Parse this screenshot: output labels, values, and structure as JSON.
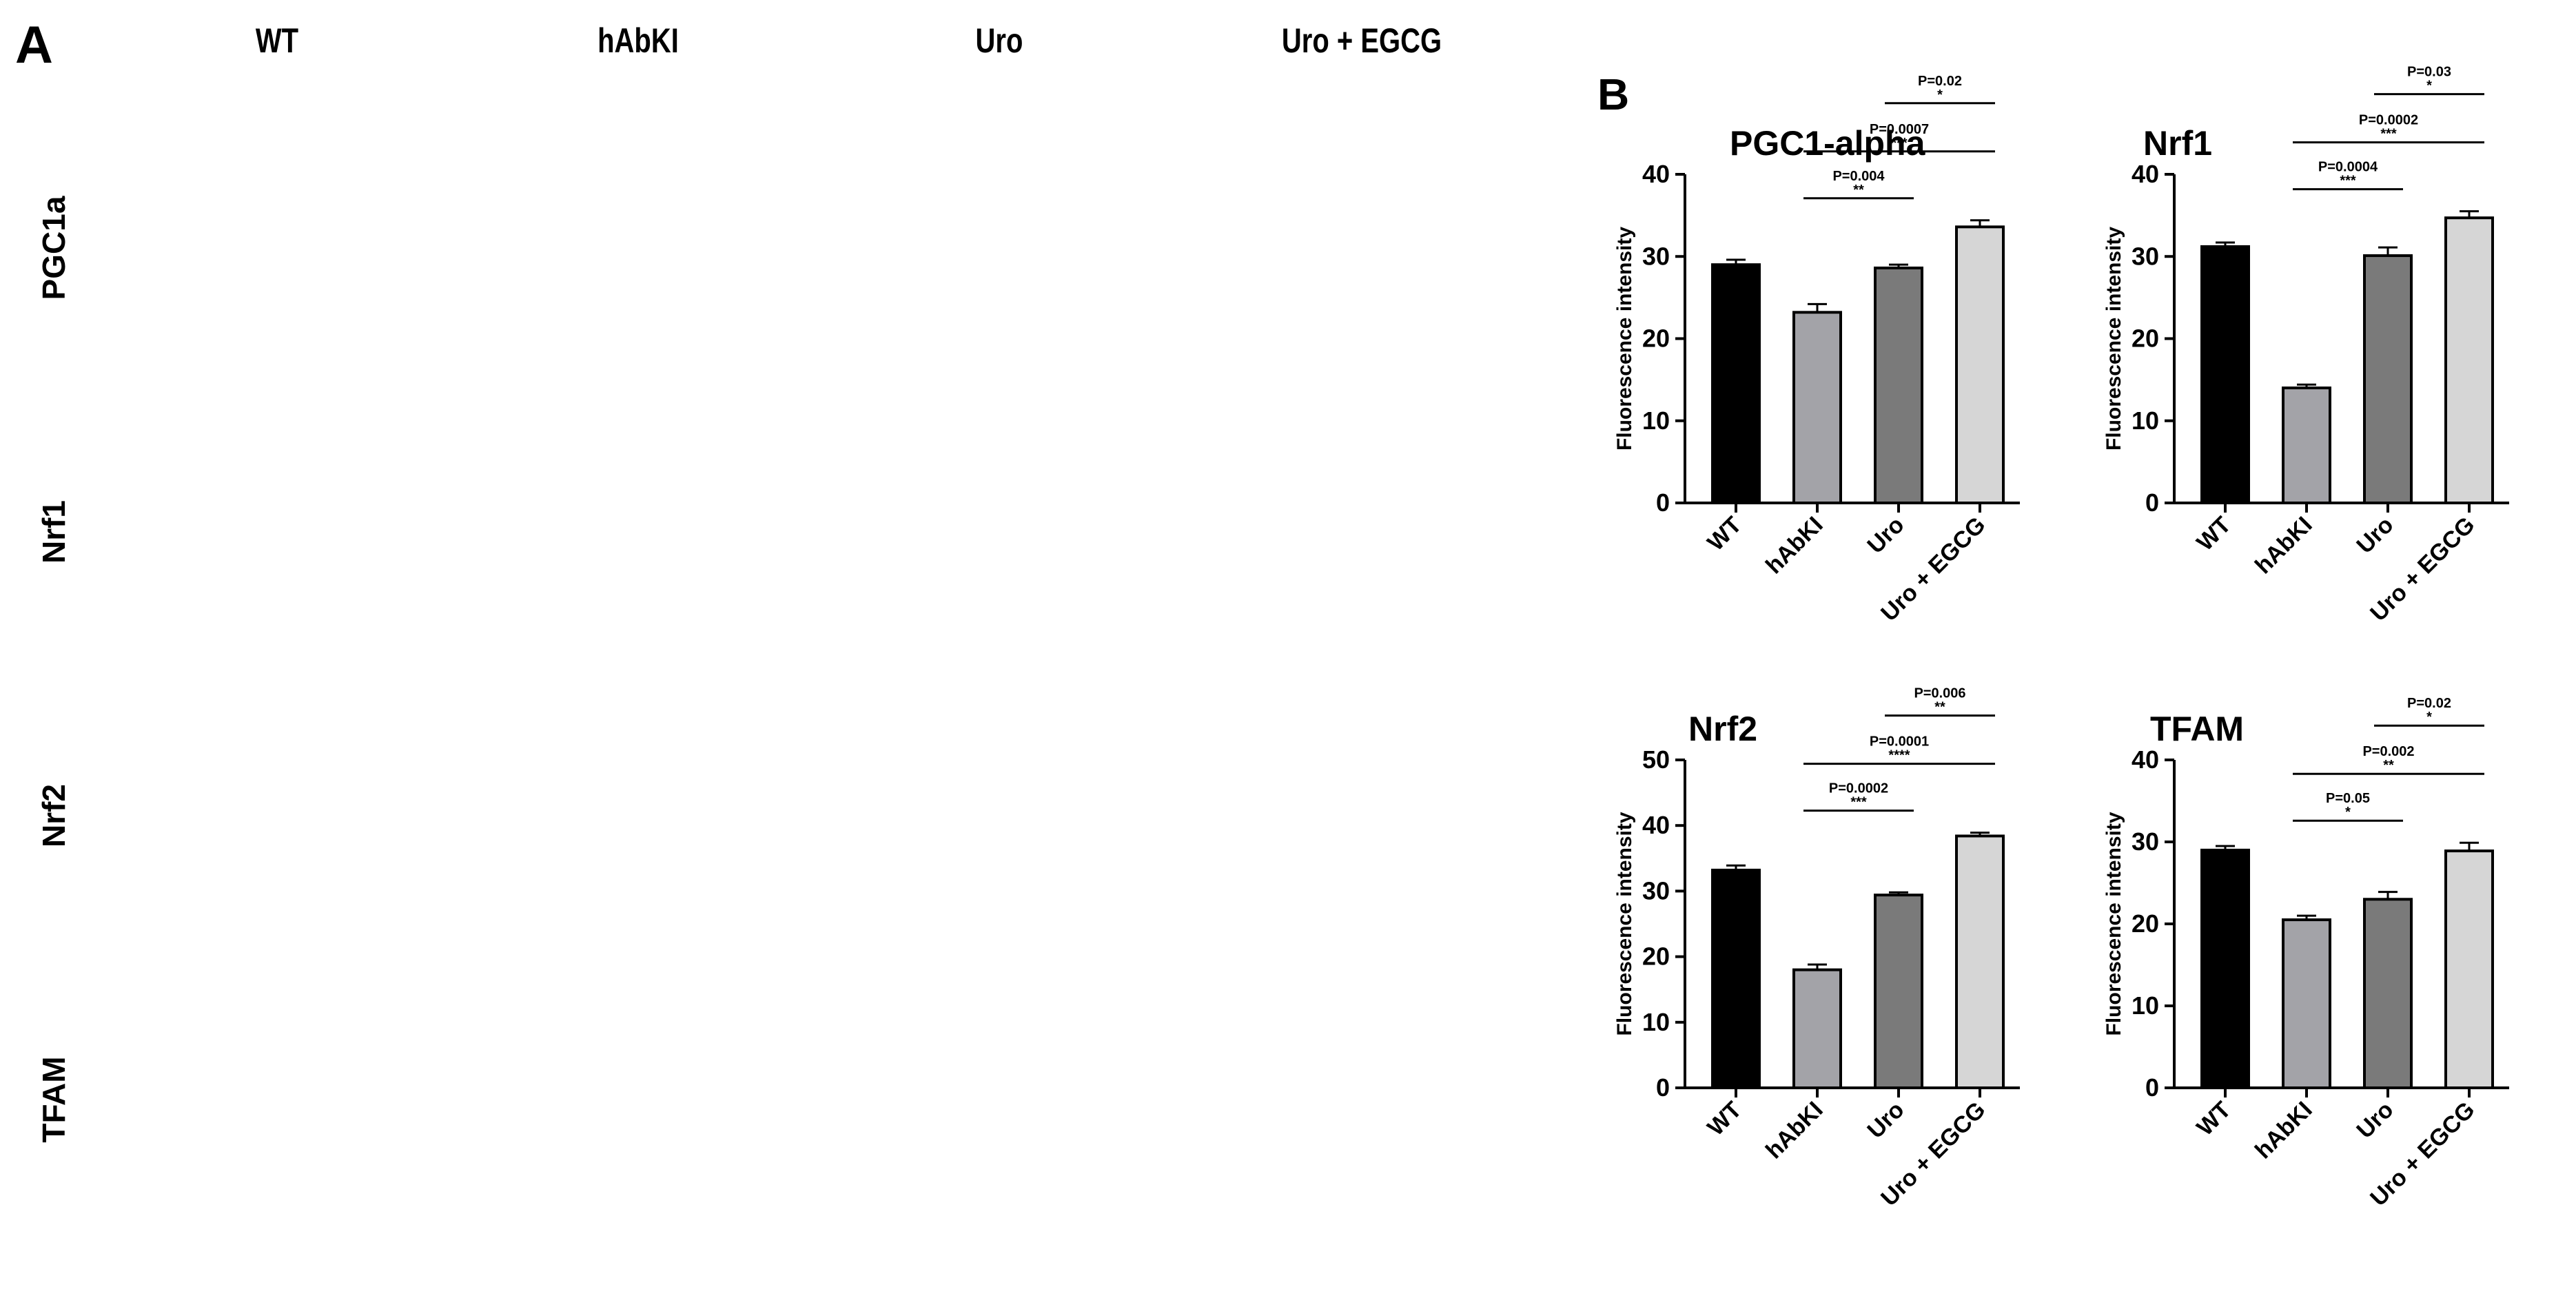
{
  "panel_a": {
    "letter": "A",
    "columns": [
      "WT",
      "hAbKI",
      "Uro",
      "Uro + EGCG"
    ],
    "rows": [
      "PGC1a",
      "Nrf1",
      "Nrf2",
      "TFAM"
    ]
  },
  "panel_b": {
    "letter": "B"
  },
  "colors": {
    "tissue_green": "#2f8f2a",
    "tissue_dark": "#0e3a1c",
    "nuclei_blue": "#2e55d6",
    "bar_colors": [
      "#000000",
      "#a3a3a8",
      "#7a7a7a",
      "#d6d6d6"
    ]
  },
  "chart_data": [
    {
      "type": "bar",
      "title": "PGC1-alpha",
      "ylabel": "Fluorescence intensity",
      "categories": [
        "WT",
        "hAbKI",
        "Uro",
        "Uro + EGCG"
      ],
      "values": [
        29,
        23.2,
        28.6,
        33.6
      ],
      "errors": [
        0.6,
        1.0,
        0.4,
        0.8
      ],
      "ylim": [
        0,
        40
      ],
      "yticks": [
        0,
        10,
        20,
        30,
        40
      ],
      "annotations": [
        {
          "from": 1,
          "to": 2,
          "p": "P=0.004",
          "stars": "**"
        },
        {
          "from": 1,
          "to": 3,
          "p": "P=0.0007",
          "stars": "***"
        },
        {
          "from": 2,
          "to": 3,
          "p": "P=0.02",
          "stars": "*"
        }
      ]
    },
    {
      "type": "bar",
      "title": "Nrf1",
      "ylabel": "Fluorescence intensity",
      "categories": [
        "WT",
        "hAbKI",
        "Uro",
        "Uro + EGCG"
      ],
      "values": [
        31.2,
        14,
        30.1,
        34.7
      ],
      "errors": [
        0.5,
        0.4,
        1.0,
        0.8
      ],
      "ylim": [
        0,
        40
      ],
      "yticks": [
        0,
        10,
        20,
        30,
        40
      ],
      "annotations": [
        {
          "from": 1,
          "to": 2,
          "p": "P=0.0004",
          "stars": "***"
        },
        {
          "from": 1,
          "to": 3,
          "p": "P=0.0002",
          "stars": "***"
        },
        {
          "from": 2,
          "to": 3,
          "p": "P=0.03",
          "stars": "*"
        }
      ]
    },
    {
      "type": "bar",
      "title": "Nrf2",
      "ylabel": "Fluorescence intensity",
      "categories": [
        "WT",
        "hAbKI",
        "Uro",
        "Uro + EGCG"
      ],
      "values": [
        33.2,
        18,
        29.4,
        38.4
      ],
      "errors": [
        0.7,
        0.8,
        0.4,
        0.5
      ],
      "ylim": [
        0,
        50
      ],
      "yticks": [
        0,
        10,
        20,
        30,
        40,
        50
      ],
      "annotations": [
        {
          "from": 1,
          "to": 2,
          "p": "P=0.0002",
          "stars": "***"
        },
        {
          "from": 1,
          "to": 3,
          "p": "P=0.0001",
          "stars": "****"
        },
        {
          "from": 2,
          "to": 3,
          "p": "P=0.006",
          "stars": "**"
        }
      ]
    },
    {
      "type": "bar",
      "title": "TFAM",
      "ylabel": "Fluorescence intensity",
      "categories": [
        "WT",
        "hAbKI",
        "Uro",
        "Uro + EGCG"
      ],
      "values": [
        29,
        20.5,
        23,
        28.9
      ],
      "errors": [
        0.5,
        0.5,
        0.9,
        1.0
      ],
      "ylim": [
        0,
        40
      ],
      "yticks": [
        0,
        10,
        20,
        30,
        40
      ],
      "annotations": [
        {
          "from": 1,
          "to": 2,
          "p": "P=0.05",
          "stars": "*"
        },
        {
          "from": 1,
          "to": 3,
          "p": "P=0.002",
          "stars": "**"
        },
        {
          "from": 2,
          "to": 3,
          "p": "P=0.02",
          "stars": "*"
        }
      ]
    }
  ]
}
